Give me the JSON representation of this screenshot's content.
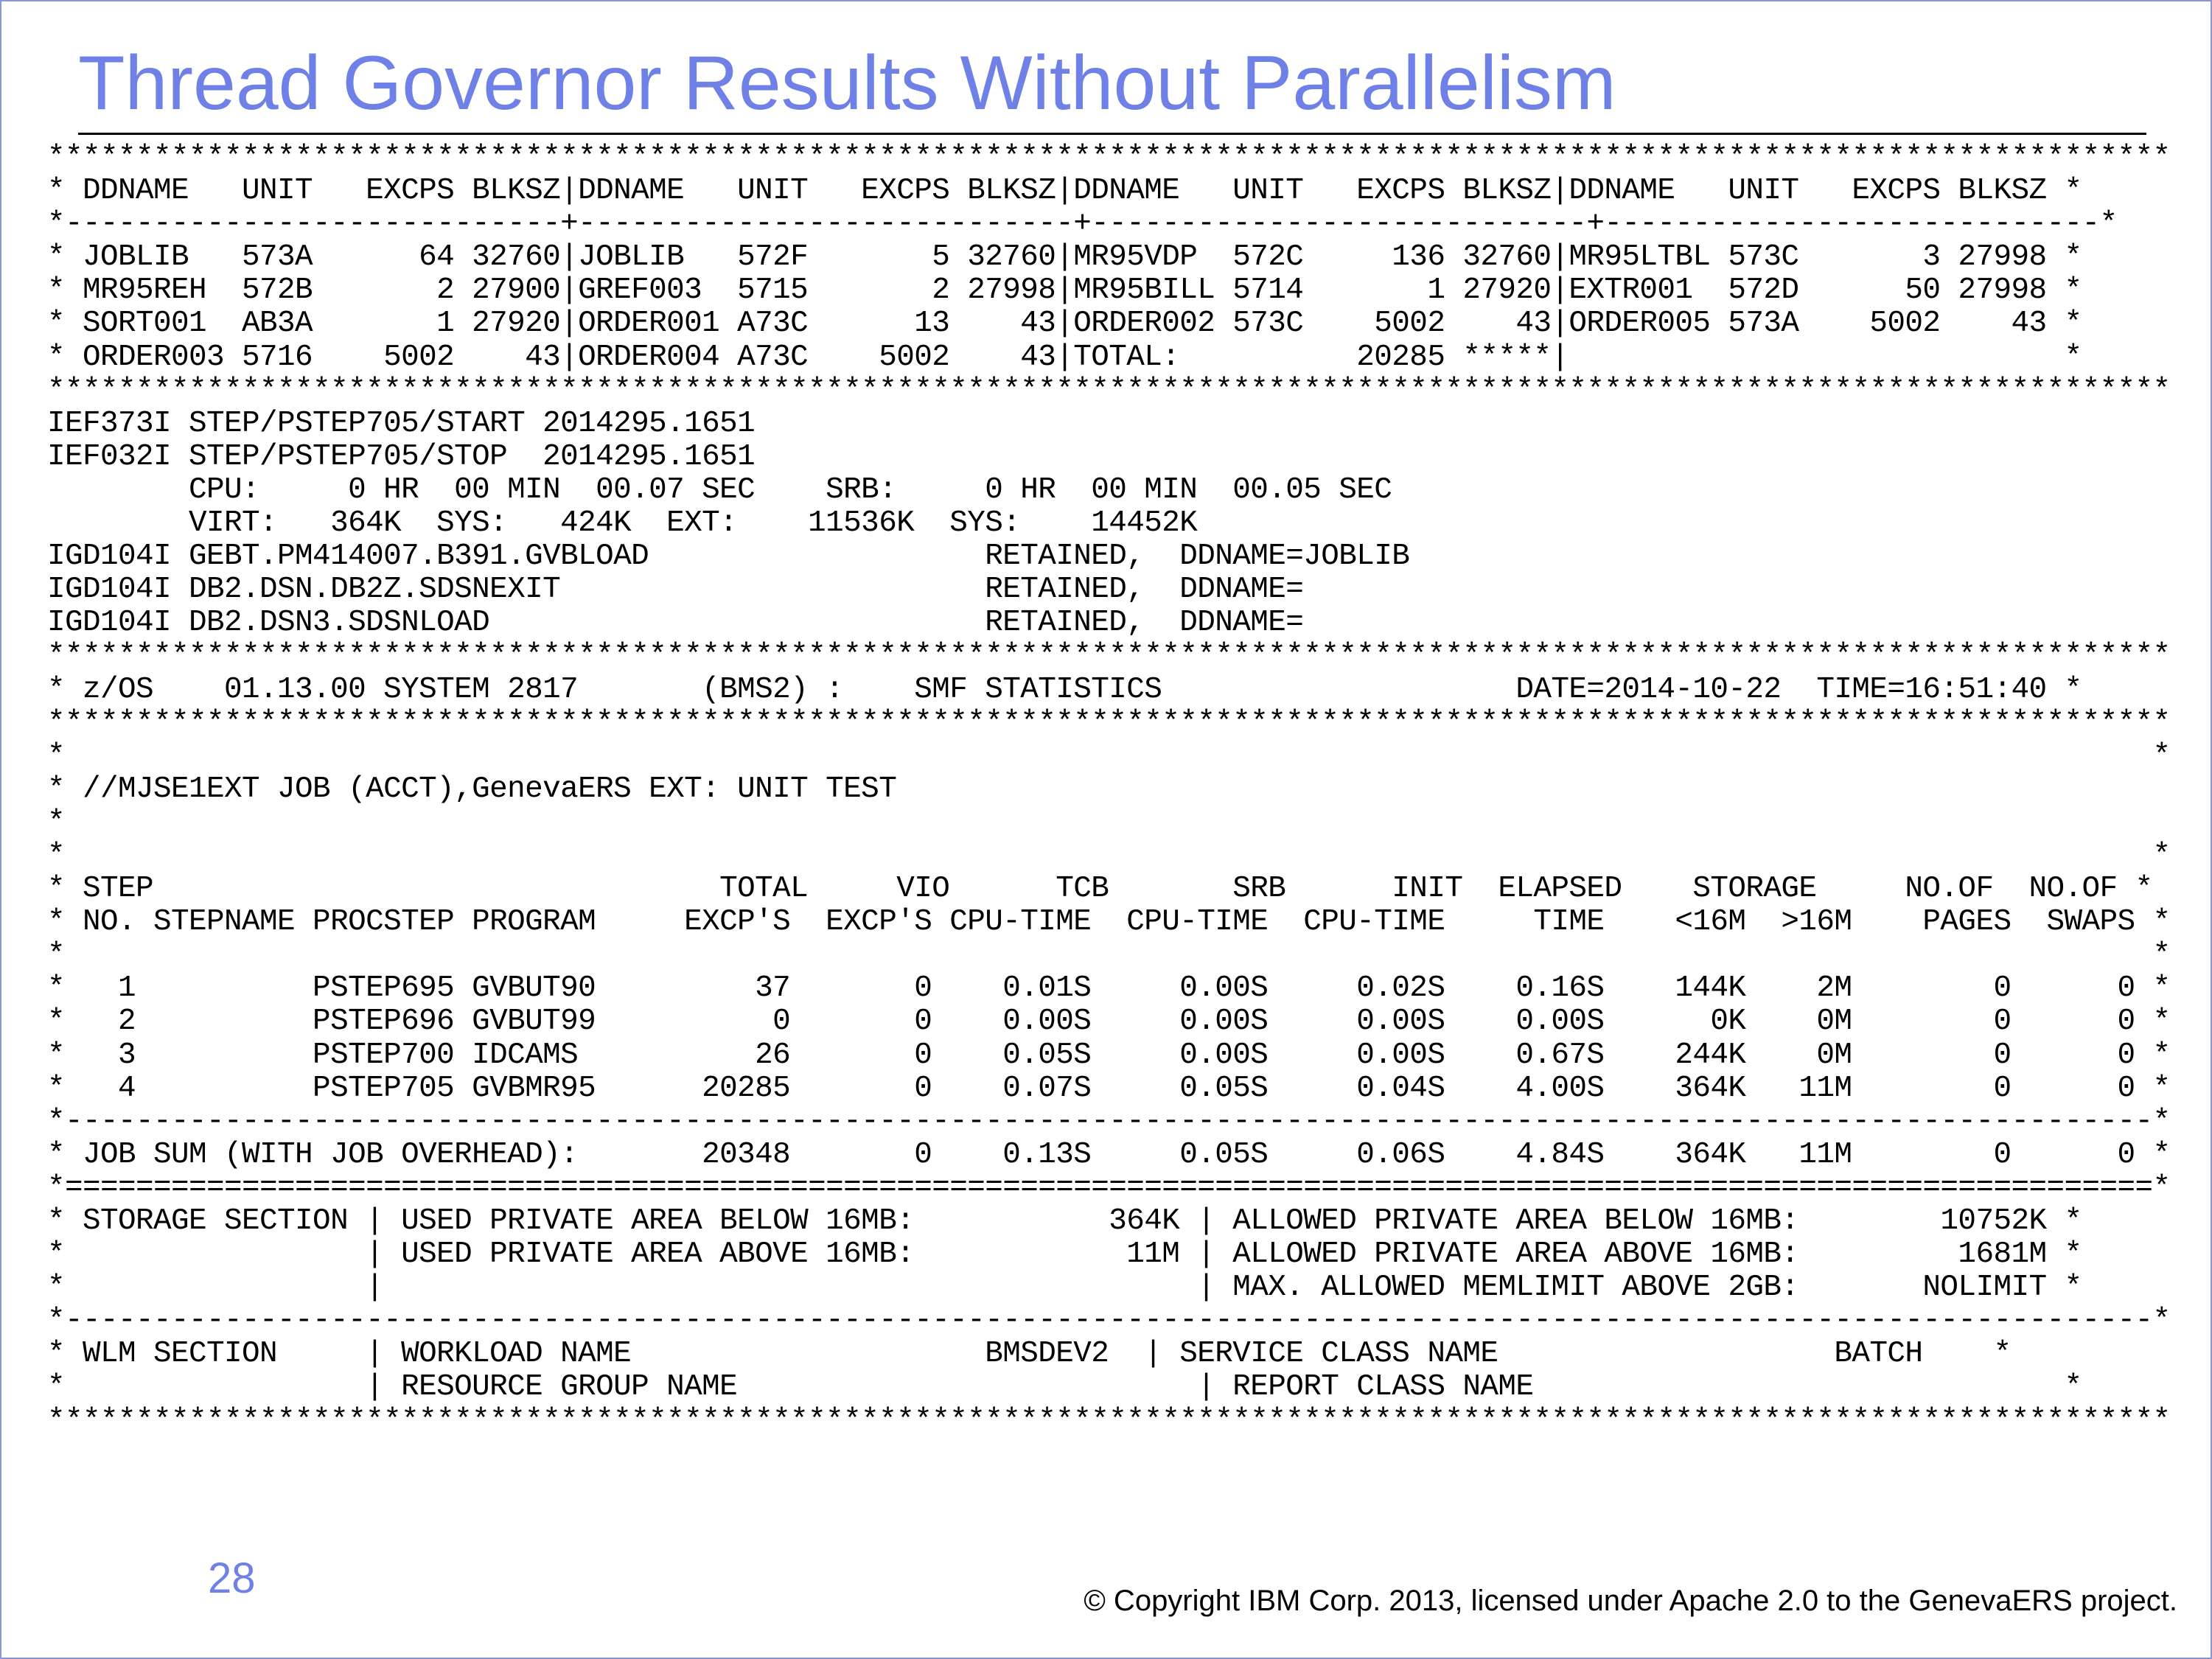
{
  "title": "Thread Governor Results Without Parallelism",
  "listing": [
    "************************************************************************************************************************",
    "* DDNAME   UNIT   EXCPS BLKSZ|DDNAME   UNIT   EXCPS BLKSZ|DDNAME   UNIT   EXCPS BLKSZ|DDNAME   UNIT   EXCPS BLKSZ *",
    "*----------------------------+----------------------------+----------------------------+----------------------------*",
    "* JOBLIB   573A      64 32760|JOBLIB   572F       5 32760|MR95VDP  572C     136 32760|MR95LTBL 573C       3 27998 *",
    "* MR95REH  572B       2 27900|GREF003  5715       2 27998|MR95BILL 5714       1 27920|EXTR001  572D      50 27998 *",
    "* SORT001  AB3A       1 27920|ORDER001 A73C      13    43|ORDER002 573C    5002    43|ORDER005 573A    5002    43 *",
    "* ORDER003 5716    5002    43|ORDER004 A73C    5002    43|TOTAL:          20285 *****|                            *",
    "************************************************************************************************************************",
    "IEF373I STEP/PSTEP705/START 2014295.1651",
    "IEF032I STEP/PSTEP705/STOP  2014295.1651",
    "        CPU:     0 HR  00 MIN  00.07 SEC    SRB:     0 HR  00 MIN  00.05 SEC",
    "        VIRT:   364K  SYS:   424K  EXT:    11536K  SYS:    14452K",
    "IGD104I GEBT.PM414007.B391.GVBLOAD                   RETAINED,  DDNAME=JOBLIB",
    "IGD104I DB2.DSN.DB2Z.SDSNEXIT                        RETAINED,  DDNAME=",
    "IGD104I DB2.DSN3.SDSNLOAD                            RETAINED,  DDNAME=",
    "************************************************************************************************************************",
    "* z/OS    01.13.00 SYSTEM 2817       (BMS2) :    SMF STATISTICS                    DATE=2014-10-22  TIME=16:51:40 *",
    "************************************************************************************************************************",
    "*                                                                                                                      *",
    "* //MJSE1EXT JOB (ACCT),GenevaERS EXT: UNIT TEST",
    "*",
    "*                                                                                                                      *",
    "* STEP                                TOTAL     VIO      TCB       SRB      INIT  ELAPSED    STORAGE     NO.OF  NO.OF *",
    "* NO. STEPNAME PROCSTEP PROGRAM     EXCP'S  EXCP'S CPU-TIME  CPU-TIME  CPU-TIME     TIME    <16M  >16M    PAGES  SWAPS *",
    "*                                                                                                                      *",
    "*   1          PSTEP695 GVBUT90         37       0    0.01S     0.00S     0.02S    0.16S    144K    2M        0      0 *",
    "*   2          PSTEP696 GVBUT99          0       0    0.00S     0.00S     0.00S    0.00S      0K    0M        0      0 *",
    "*   3          PSTEP700 IDCAMS          26       0    0.05S     0.00S     0.00S    0.67S    244K    0M        0      0 *",
    "*   4          PSTEP705 GVBMR95      20285       0    0.07S     0.05S     0.04S    4.00S    364K   11M        0      0 *",
    "*----------------------------------------------------------------------------------------------------------------------*",
    "* JOB SUM (WITH JOB OVERHEAD):       20348       0    0.13S     0.05S     0.06S    4.84S    364K   11M        0      0 *",
    "*======================================================================================================================*",
    "* STORAGE SECTION | USED PRIVATE AREA BELOW 16MB:           364K | ALLOWED PRIVATE AREA BELOW 16MB:        10752K *",
    "*                 | USED PRIVATE AREA ABOVE 16MB:            11M | ALLOWED PRIVATE AREA ABOVE 16MB:         1681M *",
    "*                 |                                              | MAX. ALLOWED MEMLIMIT ABOVE 2GB:       NOLIMIT *",
    "*----------------------------------------------------------------------------------------------------------------------*",
    "* WLM SECTION     | WORKLOAD NAME                    BMSDEV2  | SERVICE CLASS NAME                   BATCH    *",
    "*                 | RESOURCE GROUP NAME                          | REPORT CLASS NAME                              *",
    "************************************************************************************************************************"
  ],
  "page_number": "28",
  "copyright": "© Copyright IBM Corp. 2013, licensed under Apache 2.0 to the GenevaERS project."
}
